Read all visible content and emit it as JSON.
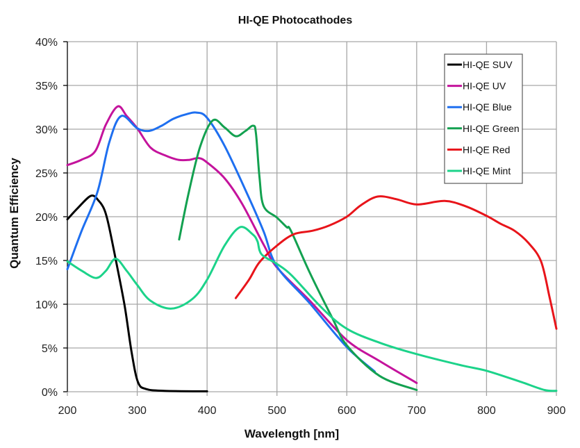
{
  "chart_data": {
    "type": "line",
    "title": "HI-QE Photocathodes",
    "xlabel": "Wavelength [nm]",
    "ylabel": "Quantum Efficiency",
    "xlim": [
      200,
      900
    ],
    "ylim": [
      0,
      40
    ],
    "x_ticks": [
      200,
      300,
      400,
      500,
      600,
      700,
      800,
      900
    ],
    "x_tick_labels": [
      "200",
      "300",
      "400",
      "500",
      "600",
      "700",
      "800",
      "900"
    ],
    "y_ticks": [
      0,
      5,
      10,
      15,
      20,
      25,
      30,
      35,
      40
    ],
    "y_tick_labels": [
      "0%",
      "5%",
      "10%",
      "15%",
      "20%",
      "25%",
      "30%",
      "35%",
      "40%"
    ],
    "grid": true,
    "legend_position": "top-right",
    "series": [
      {
        "name": "HI-QE SUV",
        "color": "#000000",
        "points": [
          [
            200,
            19.7
          ],
          [
            215,
            21.0
          ],
          [
            234,
            22.4
          ],
          [
            245,
            21.8
          ],
          [
            253,
            20.8
          ],
          [
            259,
            19.1
          ],
          [
            269,
            15.2
          ],
          [
            282,
            9.8
          ],
          [
            292,
            4.5
          ],
          [
            301,
            1.1
          ],
          [
            313,
            0.3
          ],
          [
            339,
            0.1
          ],
          [
            400,
            0.05
          ]
        ]
      },
      {
        "name": "HI-QE UV",
        "color": "#c4139c",
        "points": [
          [
            200,
            25.9
          ],
          [
            220,
            26.5
          ],
          [
            240,
            27.5
          ],
          [
            255,
            30.5
          ],
          [
            272,
            32.6
          ],
          [
            285,
            31.5
          ],
          [
            300,
            30.1
          ],
          [
            319,
            27.9
          ],
          [
            340,
            27.0
          ],
          [
            359,
            26.5
          ],
          [
            375,
            26.5
          ],
          [
            388,
            26.7
          ],
          [
            400,
            26.2
          ],
          [
            425,
            24.4
          ],
          [
            450,
            21.5
          ],
          [
            481,
            16.8
          ],
          [
            500,
            14.2
          ],
          [
            547,
            10.4
          ],
          [
            600,
            5.9
          ],
          [
            647,
            3.5
          ],
          [
            700,
            1.0
          ]
        ]
      },
      {
        "name": "HI-QE Blue",
        "color": "#1e6ff0",
        "points": [
          [
            200,
            14.0
          ],
          [
            220,
            18.3
          ],
          [
            243,
            22.8
          ],
          [
            260,
            28.5
          ],
          [
            277,
            31.5
          ],
          [
            300,
            30.1
          ],
          [
            317,
            29.8
          ],
          [
            335,
            30.4
          ],
          [
            352,
            31.2
          ],
          [
            370,
            31.7
          ],
          [
            385,
            31.9
          ],
          [
            400,
            31.3
          ],
          [
            425,
            28.1
          ],
          [
            458,
            22.5
          ],
          [
            481,
            18.3
          ],
          [
            500,
            14.3
          ],
          [
            547,
            10.1
          ],
          [
            600,
            5.1
          ],
          [
            640,
            2.3
          ]
        ]
      },
      {
        "name": "HI-QE Green",
        "color": "#13a150",
        "points": [
          [
            360,
            17.4
          ],
          [
            373,
            22.5
          ],
          [
            390,
            28.0
          ],
          [
            408,
            31.0
          ],
          [
            425,
            30.2
          ],
          [
            441,
            29.2
          ],
          [
            455,
            29.8
          ],
          [
            466,
            30.4
          ],
          [
            470,
            29.5
          ],
          [
            475,
            24.5
          ],
          [
            481,
            21.2
          ],
          [
            500,
            19.9
          ],
          [
            514,
            18.8
          ],
          [
            520,
            18.4
          ],
          [
            547,
            13.6
          ],
          [
            580,
            8.3
          ],
          [
            600,
            5.3
          ],
          [
            647,
            1.8
          ],
          [
            700,
            0.2
          ]
        ]
      },
      {
        "name": "HI-QE Red",
        "color": "#e8141a",
        "points": [
          [
            441,
            10.7
          ],
          [
            460,
            12.8
          ],
          [
            475,
            14.8
          ],
          [
            500,
            16.7
          ],
          [
            524,
            18.0
          ],
          [
            551,
            18.4
          ],
          [
            575,
            19.0
          ],
          [
            600,
            20.0
          ],
          [
            620,
            21.3
          ],
          [
            644,
            22.3
          ],
          [
            671,
            22.0
          ],
          [
            700,
            21.4
          ],
          [
            740,
            21.8
          ],
          [
            770,
            21.2
          ],
          [
            800,
            20.1
          ],
          [
            820,
            19.2
          ],
          [
            840,
            18.4
          ],
          [
            860,
            17.0
          ],
          [
            878,
            14.9
          ],
          [
            890,
            10.9
          ],
          [
            900,
            7.2
          ]
        ]
      },
      {
        "name": "HI-QE Mint",
        "color": "#1cd38a",
        "points": [
          [
            200,
            14.9
          ],
          [
            221,
            13.8
          ],
          [
            241,
            13.0
          ],
          [
            255,
            13.8
          ],
          [
            269,
            15.2
          ],
          [
            285,
            13.8
          ],
          [
            300,
            12.2
          ],
          [
            319,
            10.4
          ],
          [
            349,
            9.5
          ],
          [
            379,
            10.6
          ],
          [
            400,
            12.8
          ],
          [
            425,
            16.7
          ],
          [
            447,
            18.8
          ],
          [
            465,
            18.0
          ],
          [
            472,
            17.2
          ],
          [
            478,
            15.7
          ],
          [
            500,
            14.6
          ],
          [
            521,
            13.3
          ],
          [
            564,
            9.6
          ],
          [
            600,
            7.2
          ],
          [
            647,
            5.6
          ],
          [
            700,
            4.3
          ],
          [
            765,
            3.0
          ],
          [
            800,
            2.4
          ],
          [
            850,
            1.1
          ],
          [
            883,
            0.2
          ],
          [
            900,
            0.1
          ]
        ]
      }
    ]
  }
}
